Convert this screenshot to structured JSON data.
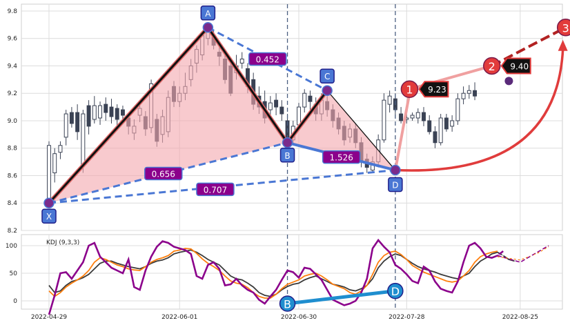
{
  "chart_data": [
    {
      "type": "candlestick",
      "title": "",
      "xlabel": "",
      "ylabel": "",
      "ylim": [
        8.2,
        9.85
      ],
      "yticks": [
        "8.2",
        "8.4",
        "8.6",
        "8.8",
        "9.0",
        "9.2",
        "9.4",
        "9.6",
        "9.8"
      ],
      "xticks": [
        {
          "index": 0,
          "label": "2022-04-29"
        },
        {
          "index": 23,
          "label": "2022-06-01"
        },
        {
          "index": 44,
          "label": "2022-06-30"
        },
        {
          "index": 63,
          "label": "2022-07-28"
        },
        {
          "index": 83,
          "label": "2022-08-25"
        }
      ],
      "grid": true,
      "candles": [
        [
          8.42,
          8.82,
          8.85,
          8.38
        ],
        [
          8.62,
          8.76,
          8.8,
          8.55
        ],
        [
          8.77,
          8.82,
          8.85,
          8.72
        ],
        [
          8.88,
          9.05,
          9.08,
          8.82
        ],
        [
          9.06,
          8.98,
          9.1,
          8.95
        ],
        [
          9.06,
          8.92,
          9.12,
          8.86
        ],
        [
          8.68,
          9.05,
          9.08,
          8.62
        ],
        [
          9.11,
          8.96,
          9.15,
          8.9
        ],
        [
          9.01,
          9.11,
          9.18,
          8.98
        ],
        [
          9.02,
          9.11,
          9.14,
          8.97
        ],
        [
          9.12,
          9.06,
          9.17,
          9.0
        ],
        [
          9.1,
          9.03,
          9.16,
          8.98
        ],
        [
          9.09,
          9.01,
          9.12,
          8.96
        ],
        [
          9.08,
          9.04,
          9.11,
          9.0
        ],
        [
          9.02,
          8.96,
          9.05,
          8.9
        ],
        [
          8.91,
          8.96,
          9.01,
          8.86
        ],
        [
          9.04,
          9.09,
          9.12,
          8.99
        ],
        [
          9.03,
          8.94,
          9.07,
          8.89
        ],
        [
          8.95,
          9.27,
          9.3,
          8.91
        ],
        [
          9.01,
          8.85,
          9.05,
          8.81
        ],
        [
          8.9,
          9.03,
          9.08,
          8.84
        ],
        [
          8.92,
          9.17,
          9.22,
          8.88
        ],
        [
          9.25,
          9.14,
          9.29,
          9.1
        ],
        [
          9.14,
          9.2,
          9.25,
          9.1
        ],
        [
          9.2,
          9.25,
          9.35,
          9.15
        ],
        [
          9.3,
          9.4,
          9.45,
          9.25
        ],
        [
          9.42,
          9.52,
          9.55,
          9.35
        ],
        [
          9.48,
          9.62,
          9.65,
          9.44
        ],
        [
          9.6,
          9.66,
          9.69,
          9.55
        ],
        [
          9.61,
          9.55,
          9.66,
          9.52
        ],
        [
          9.5,
          9.47,
          9.58,
          9.4
        ],
        [
          9.45,
          9.3,
          9.52,
          9.27
        ],
        [
          9.4,
          9.2,
          9.44,
          9.18
        ],
        [
          9.35,
          9.4,
          9.48,
          9.3
        ],
        [
          9.42,
          9.45,
          9.5,
          9.38
        ],
        [
          9.38,
          9.25,
          9.42,
          9.2
        ],
        [
          9.3,
          9.12,
          9.35,
          9.08
        ],
        [
          9.18,
          9.1,
          9.25,
          9.05
        ],
        [
          9.14,
          9.02,
          9.22,
          8.98
        ],
        [
          9.08,
          9.13,
          9.18,
          9.03
        ],
        [
          9.15,
          9.1,
          9.2,
          9.04
        ],
        [
          9.1,
          9.05,
          9.15,
          9.0
        ],
        [
          9.0,
          8.84,
          9.05,
          8.82
        ],
        [
          8.86,
          8.96,
          9.0,
          8.83
        ],
        [
          8.97,
          9.1,
          9.13,
          8.93
        ],
        [
          9.1,
          9.2,
          9.23,
          9.06
        ],
        [
          9.18,
          9.14,
          9.22,
          9.08
        ],
        [
          9.12,
          9.05,
          9.17,
          9.0
        ],
        [
          9.05,
          9.15,
          9.2,
          9.0
        ],
        [
          9.14,
          9.08,
          9.18,
          9.03
        ],
        [
          9.08,
          9.0,
          9.12,
          8.95
        ],
        [
          9.02,
          8.94,
          9.06,
          8.9
        ],
        [
          8.96,
          8.86,
          9.0,
          8.82
        ],
        [
          8.88,
          8.94,
          8.98,
          8.84
        ],
        [
          8.94,
          8.84,
          8.98,
          8.8
        ],
        [
          8.84,
          8.7,
          8.88,
          8.66
        ],
        [
          8.72,
          8.66,
          8.76,
          8.62
        ],
        [
          8.64,
          8.7,
          8.74,
          8.62
        ],
        [
          8.7,
          8.86,
          8.9,
          8.66
        ],
        [
          8.86,
          9.15,
          9.2,
          8.84
        ],
        [
          9.12,
          9.18,
          9.22,
          9.06
        ],
        [
          9.16,
          9.08,
          9.2,
          9.02
        ],
        [
          9.05,
          9.0,
          9.1,
          8.98
        ],
        [
          9.01,
          9.02,
          9.05,
          8.98
        ],
        [
          9.02,
          9.04,
          9.06,
          9.0
        ],
        [
          9.02,
          9.06,
          9.09,
          8.98
        ],
        [
          9.06,
          9.0,
          9.1,
          8.96
        ],
        [
          9.0,
          8.92,
          9.04,
          8.9
        ],
        [
          8.92,
          8.84,
          8.96,
          8.8
        ],
        [
          8.84,
          9.02,
          9.05,
          8.82
        ],
        [
          9.02,
          8.94,
          9.05,
          8.92
        ],
        [
          8.96,
          9.0,
          9.04,
          8.92
        ],
        [
          9.0,
          9.16,
          9.2,
          8.97
        ],
        [
          9.16,
          9.2,
          9.25,
          9.12
        ],
        [
          9.2,
          9.22,
          9.26,
          9.16
        ],
        [
          9.22,
          9.18,
          9.28,
          9.15
        ]
      ]
    },
    {
      "type": "line",
      "title": "KDJ (9,3,3)",
      "ylim": [
        -15,
        120
      ],
      "yticks": [
        "0",
        "50",
        "100"
      ],
      "x_range": [
        0,
        86
      ],
      "series": [
        {
          "color": "#3a3a3a",
          "values": [
            28,
            15,
            18,
            28,
            35,
            38,
            42,
            48,
            58,
            68,
            72,
            72,
            68,
            65,
            62,
            60,
            58,
            62,
            68,
            72,
            74,
            78,
            85,
            88,
            90,
            92,
            88,
            82,
            75,
            70,
            65,
            55,
            45,
            40,
            38,
            32,
            25,
            15,
            10,
            8,
            12,
            20,
            26,
            30,
            32,
            38,
            42,
            45,
            40,
            35,
            30,
            28,
            25,
            20,
            18,
            22,
            28,
            40,
            60,
            72,
            80,
            85,
            82,
            75,
            68,
            62,
            58,
            55,
            52,
            48,
            45,
            42,
            40,
            45,
            50,
            62,
            72,
            78,
            85,
            88,
            82,
            75,
            72
          ]
        },
        {
          "color": "#ff7f0e",
          "values": [
            18,
            8,
            15,
            25,
            32,
            38,
            45,
            55,
            70,
            78,
            75,
            70,
            65,
            62,
            58,
            56,
            55,
            62,
            70,
            75,
            78,
            82,
            90,
            92,
            95,
            94,
            86,
            76,
            68,
            62,
            55,
            45,
            36,
            32,
            30,
            24,
            15,
            8,
            5,
            5,
            12,
            22,
            30,
            34,
            38,
            45,
            48,
            50,
            45,
            38,
            30,
            26,
            22,
            15,
            12,
            18,
            28,
            48,
            70,
            82,
            88,
            90,
            84,
            75,
            64,
            58,
            52,
            48,
            44,
            40,
            36,
            34,
            36,
            45,
            55,
            70,
            80,
            85,
            88,
            90
          ]
        },
        {
          "color": "#8b008b",
          "values": [
            -25,
            10,
            50,
            52,
            40,
            55,
            70,
            100,
            105,
            80,
            70,
            60,
            55,
            50,
            75,
            25,
            20,
            55,
            80,
            98,
            108,
            105,
            98,
            95,
            92,
            85,
            45,
            40,
            65,
            70,
            58,
            28,
            30,
            40,
            28,
            20,
            15,
            2,
            -5,
            8,
            20,
            38,
            55,
            52,
            42,
            60,
            58,
            48,
            38,
            20,
            2,
            -3,
            -8,
            -5,
            0,
            15,
            40,
            95,
            110,
            98,
            88,
            65,
            58,
            48,
            36,
            32,
            62,
            55,
            35,
            22,
            18,
            15,
            35,
            70,
            100,
            105,
            95,
            80,
            78,
            82,
            90
          ]
        }
      ]
    }
  ],
  "pattern": {
    "points": {
      "X": {
        "index": 0,
        "price": 8.4,
        "label": "X"
      },
      "A": {
        "index": 28,
        "price": 9.68,
        "label": "A"
      },
      "B": {
        "index": 42,
        "price": 8.84,
        "label": "B"
      },
      "C": {
        "index": 49,
        "price": 9.22,
        "label": "C"
      },
      "D": {
        "index": 61,
        "price": 8.64,
        "label": "D"
      }
    },
    "ratios": {
      "XAB": "0.656",
      "ABC": "0.452",
      "BCD": "1.526",
      "XAD": "0.707"
    },
    "targets": [
      {
        "num": "1",
        "value": "9.23",
        "index": 63.5,
        "price": 9.23
      },
      {
        "num": "2",
        "value": "9.40",
        "index": 78,
        "price": 9.4
      },
      {
        "num": "3",
        "value": "9.68",
        "index": 91,
        "price": 9.68
      }
    ],
    "current": {
      "index": 81,
      "price": 9.29
    },
    "vlines": [
      42,
      61
    ]
  },
  "kdj_labels": {
    "B": {
      "index": 42,
      "value": -5,
      "label": "B"
    },
    "D": {
      "index": 61,
      "value": 18,
      "label": "D"
    }
  },
  "colors": {
    "badge": "#4a77d4",
    "badge_border": "#1f1f8a",
    "ratio_bg": "#8b008b",
    "ratio_border": "#4a77d4",
    "fill": "#f4a6ad",
    "target": "#e23b3b",
    "kdj_badge": "#1f8ecf"
  }
}
